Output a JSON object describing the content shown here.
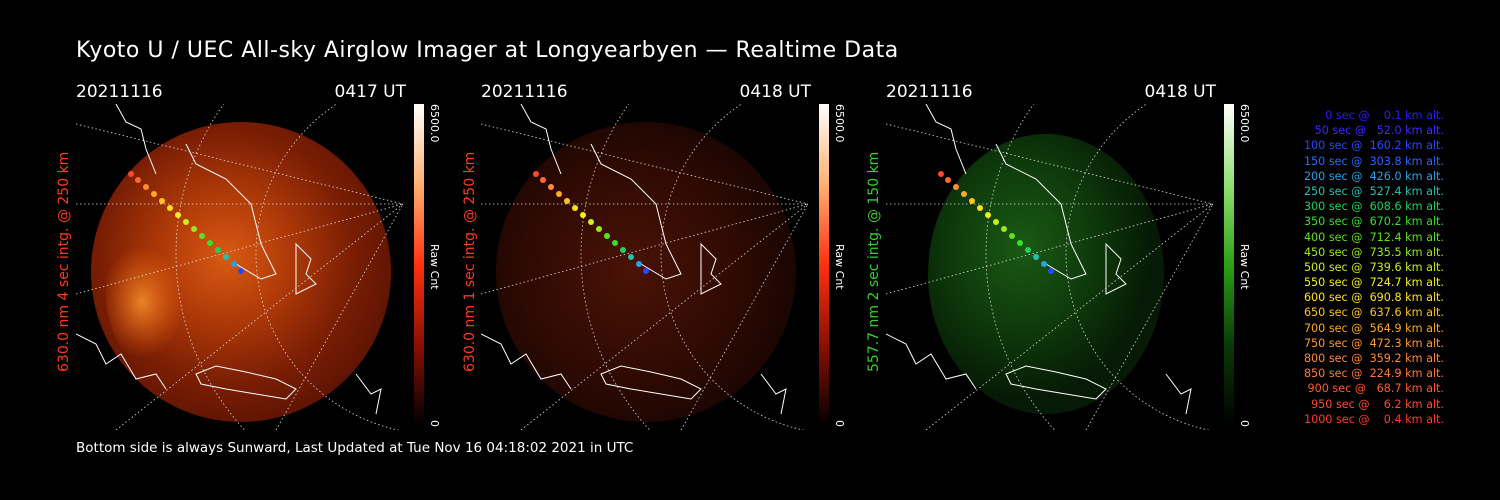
{
  "title": "Kyoto U / UEC All-sky Airglow Imager at Longyearbyen — Realtime Data",
  "panels": [
    {
      "date": "20211116",
      "time": "0417 UT",
      "ylabel": "630.0 nm 4 sec intg. @ 250 km",
      "cbar_max": "6500.0",
      "cbar_unit": "Raw Cnt",
      "cbar_min": "0",
      "color": "#ff3b1f",
      "glow": "#c8480e"
    },
    {
      "date": "20211116",
      "time": "0418 UT",
      "ylabel": "630.0 nm 1 sec intg. @ 250 km",
      "cbar_max": "6500.0",
      "cbar_unit": "Raw Cnt",
      "cbar_min": "0",
      "color": "#ff3b1f",
      "glow": "#4a1005"
    },
    {
      "date": "20211116",
      "time": "0418 UT",
      "ylabel": "557.7 nm 2 sec intg. @ 150 km",
      "cbar_max": "6500.0",
      "cbar_unit": "Raw Cnt",
      "cbar_min": "0",
      "color": "#34d12a",
      "glow": "#0c3a0a"
    }
  ],
  "legend": [
    {
      "text": "0 sec @    0.1 km alt.",
      "color": "#2a1cff"
    },
    {
      "text": "50 sec @   52.0 km alt.",
      "color": "#3a2cff"
    },
    {
      "text": "100 sec @  160.2 km alt.",
      "color": "#2648ff"
    },
    {
      "text": "150 sec @  303.8 km alt.",
      "color": "#2a6aff"
    },
    {
      "text": "200 sec @  426.0 km alt.",
      "color": "#2aa0e8"
    },
    {
      "text": "250 sec @  527.4 km alt.",
      "color": "#25c0b0"
    },
    {
      "text": "300 sec @  608.6 km alt.",
      "color": "#22d060"
    },
    {
      "text": "350 sec @  670.2 km alt.",
      "color": "#34e028"
    },
    {
      "text": "400 sec @  712.4 km alt.",
      "color": "#5ee020"
    },
    {
      "text": "450 sec @  735.5 km alt.",
      "color": "#98e81c"
    },
    {
      "text": "500 sec @  739.6 km alt.",
      "color": "#c8f01c"
    },
    {
      "text": "550 sec @  724.7 km alt.",
      "color": "#f0f020"
    },
    {
      "text": "600 sec @  690.8 km alt.",
      "color": "#ffe020"
    },
    {
      "text": "650 sec @  637.6 km alt.",
      "color": "#ffc420"
    },
    {
      "text": "700 sec @  564.9 km alt.",
      "color": "#ffaa28"
    },
    {
      "text": "750 sec @  472.3 km alt.",
      "color": "#ff9a30"
    },
    {
      "text": "800 sec @  359.2 km alt.",
      "color": "#ff8a38"
    },
    {
      "text": "850 sec @  224.9 km alt.",
      "color": "#ff7a3a"
    },
    {
      "text": "900 sec @   68.7 km alt.",
      "color": "#ff5a32"
    },
    {
      "text": "950 sec @    6.2 km alt.",
      "color": "#ff4a2e"
    },
    {
      "text": "1000 sec @    0.4 km alt.",
      "color": "#ff3a2a"
    }
  ],
  "footer": "Bottom side is always Sunward, Last Updated at Tue Nov 16 04:18:02 2021 in UTC"
}
